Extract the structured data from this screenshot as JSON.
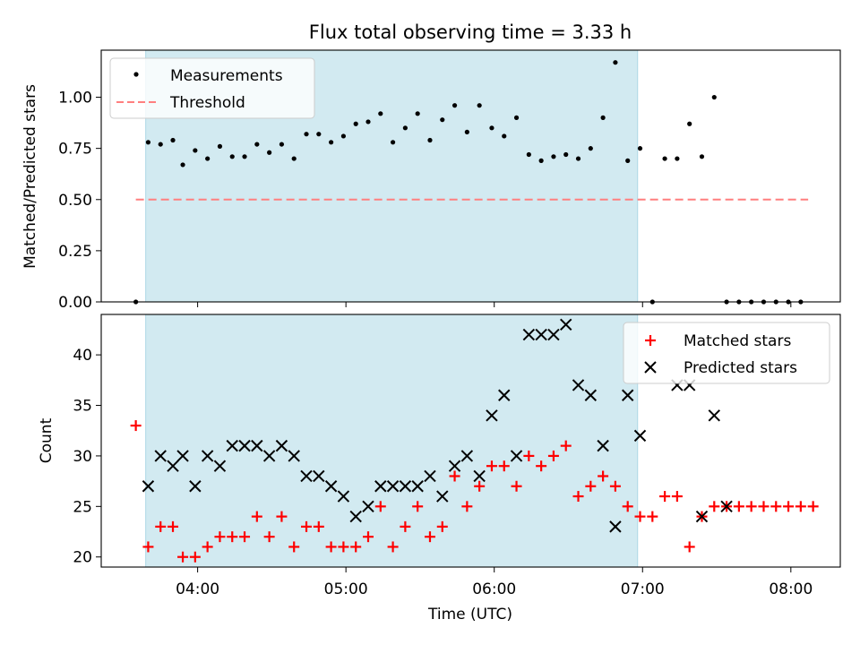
{
  "title": "Flux total observing time = 3.33 h",
  "x_label": "Time (UTC)",
  "x_ticks": [
    "04:00",
    "05:00",
    "06:00",
    "07:00",
    "08:00"
  ],
  "colors": {
    "shade": "#add8e6",
    "measurement": "#000000",
    "threshold": "#ff7f7f",
    "matched": "#ff0000",
    "predicted": "#000000"
  },
  "chart_data": [
    {
      "type": "scatter",
      "ylabel": "Matched/Predicted stars",
      "ylim": [
        0,
        1.23
      ],
      "yticks": [
        "0.00",
        "0.25",
        "0.50",
        "0.75",
        "1.00"
      ],
      "xlim": [
        "03:21",
        "08:20"
      ],
      "shaded_span": [
        "03:39",
        "06:58"
      ],
      "legend": {
        "position": "top-left",
        "entries": [
          "Measurements",
          "Threshold"
        ]
      },
      "threshold": {
        "name": "Threshold",
        "value": 0.5,
        "x": [
          "03:35",
          "08:07"
        ]
      },
      "series": [
        {
          "name": "Measurements",
          "x": [
            "03:35",
            "03:40",
            "03:45",
            "03:50",
            "03:54",
            "03:59",
            "04:04",
            "04:09",
            "04:14",
            "04:19",
            "04:24",
            "04:29",
            "04:34",
            "04:39",
            "04:44",
            "04:49",
            "04:54",
            "04:59",
            "05:04",
            "05:09",
            "05:14",
            "05:19",
            "05:24",
            "05:29",
            "05:34",
            "05:39",
            "05:44",
            "05:49",
            "05:54",
            "05:59",
            "06:04",
            "06:09",
            "06:14",
            "06:19",
            "06:24",
            "06:29",
            "06:34",
            "06:39",
            "06:44",
            "06:49",
            "06:54",
            "06:59",
            "07:04",
            "07:09",
            "07:14",
            "07:19",
            "07:24",
            "07:29",
            "07:34",
            "07:39",
            "07:44",
            "07:49",
            "07:54",
            "07:59",
            "08:04"
          ],
          "y": [
            0.0,
            0.78,
            0.77,
            0.79,
            0.67,
            0.74,
            0.7,
            0.76,
            0.71,
            0.71,
            0.77,
            0.73,
            0.77,
            0.7,
            0.82,
            0.82,
            0.78,
            0.81,
            0.87,
            0.88,
            0.92,
            0.78,
            0.85,
            0.92,
            0.79,
            0.89,
            0.96,
            0.83,
            0.96,
            0.85,
            0.81,
            0.9,
            0.72,
            0.69,
            0.71,
            0.72,
            0.7,
            0.75,
            0.9,
            1.17,
            0.69,
            0.75,
            0.0,
            0.7,
            0.7,
            0.87,
            0.71,
            1.0,
            0.0,
            0.0,
            0.0,
            0.0,
            0.0,
            0.0,
            0.0
          ]
        }
      ]
    },
    {
      "type": "scatter",
      "ylabel": "Count",
      "ylim": [
        19,
        44
      ],
      "yticks": [
        "20",
        "25",
        "30",
        "35",
        "40"
      ],
      "xlim": [
        "03:21",
        "08:20"
      ],
      "shaded_span": [
        "03:39",
        "06:58"
      ],
      "legend": {
        "position": "top-right",
        "entries": [
          "Matched stars",
          "Predicted stars"
        ]
      },
      "series": [
        {
          "name": "Matched stars",
          "marker": "plus",
          "x": [
            "03:35",
            "03:40",
            "03:45",
            "03:50",
            "03:54",
            "03:59",
            "04:04",
            "04:09",
            "04:14",
            "04:19",
            "04:24",
            "04:29",
            "04:34",
            "04:39",
            "04:44",
            "04:49",
            "04:54",
            "04:59",
            "05:04",
            "05:09",
            "05:14",
            "05:19",
            "05:24",
            "05:29",
            "05:34",
            "05:39",
            "05:44",
            "05:49",
            "05:54",
            "05:59",
            "06:04",
            "06:09",
            "06:14",
            "06:19",
            "06:24",
            "06:29",
            "06:34",
            "06:39",
            "06:44",
            "06:49",
            "06:54",
            "06:59",
            "07:04",
            "07:09",
            "07:14",
            "07:19",
            "07:24",
            "07:29",
            "07:34",
            "07:39",
            "07:44",
            "07:49",
            "07:54",
            "07:59",
            "08:04",
            "08:09"
          ],
          "y": [
            33,
            21,
            23,
            23,
            20,
            20,
            21,
            22,
            22,
            22,
            24,
            22,
            24,
            21,
            23,
            23,
            21,
            21,
            21,
            22,
            25,
            21,
            23,
            25,
            22,
            23,
            28,
            25,
            27,
            29,
            29,
            27,
            30,
            29,
            30,
            31,
            26,
            27,
            28,
            27,
            25,
            24,
            24,
            26,
            26,
            21,
            24,
            25,
            25,
            25,
            25,
            25,
            25,
            25,
            25,
            25
          ]
        },
        {
          "name": "Predicted stars",
          "marker": "x",
          "x": [
            "03:40",
            "03:45",
            "03:50",
            "03:54",
            "03:59",
            "04:04",
            "04:09",
            "04:14",
            "04:19",
            "04:24",
            "04:29",
            "04:34",
            "04:39",
            "04:44",
            "04:49",
            "04:54",
            "04:59",
            "05:04",
            "05:09",
            "05:14",
            "05:19",
            "05:24",
            "05:29",
            "05:34",
            "05:39",
            "05:44",
            "05:49",
            "05:54",
            "05:59",
            "06:04",
            "06:09",
            "06:14",
            "06:19",
            "06:24",
            "06:29",
            "06:34",
            "06:39",
            "06:44",
            "06:49",
            "06:54",
            "06:59",
            "07:14",
            "07:19",
            "07:24",
            "07:29",
            "07:34"
          ],
          "y": [
            27,
            30,
            29,
            30,
            27,
            30,
            29,
            31,
            31,
            31,
            30,
            31,
            30,
            28,
            28,
            27,
            26,
            24,
            25,
            27,
            27,
            27,
            27,
            28,
            26,
            29,
            30,
            28,
            34,
            36,
            30,
            42,
            42,
            42,
            43,
            37,
            36,
            31,
            23,
            36,
            32,
            37,
            37,
            24,
            34,
            25
          ]
        }
      ]
    }
  ]
}
